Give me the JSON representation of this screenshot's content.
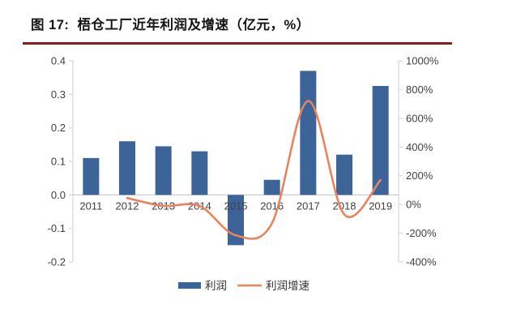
{
  "title": {
    "label": "图 17:",
    "text": "梧仓工厂近年利润及增速（亿元，%）"
  },
  "colors": {
    "accent_rule": "#8F1A1A",
    "bar": "#3C6499",
    "line": "#E8835C",
    "axis_line": "#D9D9D9",
    "zero_line": "#C6C6C6",
    "tick_text": "#404040",
    "title_text": "#141414"
  },
  "chart_data": {
    "type": "combo_bar_line",
    "title": "梧仓工厂近年利润及增速（亿元，%）",
    "categories": [
      "2011",
      "2012",
      "2013",
      "2014",
      "2015",
      "2016",
      "2017",
      "2018",
      "2019"
    ],
    "series": [
      {
        "name": "利润",
        "type": "bar",
        "axis": "left",
        "unit": "亿元",
        "values": [
          0.11,
          0.16,
          0.145,
          0.13,
          -0.15,
          0.045,
          0.37,
          0.12,
          0.325
        ]
      },
      {
        "name": "利润增速",
        "type": "line",
        "axis": "right",
        "unit": "%",
        "values": [
          null,
          45,
          -10,
          -10,
          -215,
          -130,
          720,
          -70,
          170
        ]
      }
    ],
    "left_axis": {
      "min": -0.2,
      "max": 0.4,
      "tick_labels": [
        "0.4",
        "0.3",
        "0.2",
        "0.1",
        "0.0",
        "-0.1",
        "-0.2"
      ]
    },
    "right_axis": {
      "min": -400,
      "max": 1000,
      "tick_labels": [
        "1000%",
        "800%",
        "600%",
        "400%",
        "200%",
        "0%",
        "-200%",
        "-400%"
      ]
    },
    "grid": false,
    "legend_position": "bottom",
    "legend": [
      "利润",
      "利润增速"
    ]
  }
}
